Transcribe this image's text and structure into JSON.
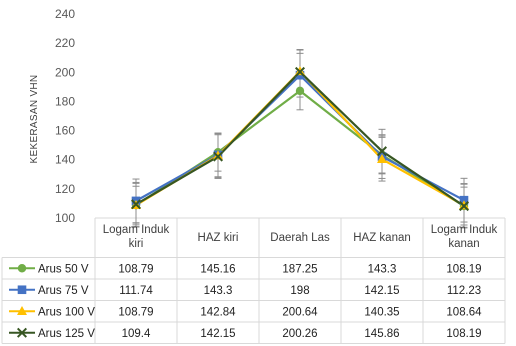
{
  "chart_data": {
    "type": "line",
    "ylabel": "KEKERASAN VHN",
    "ylim": [
      100,
      240
    ],
    "yticks": [
      100,
      120,
      140,
      160,
      180,
      200,
      220,
      240
    ],
    "categories": [
      [
        "Logam Induk",
        "kiri"
      ],
      [
        "HAZ kiri"
      ],
      [
        "Daerah Las"
      ],
      [
        "HAZ kanan"
      ],
      [
        "Logam Induk",
        "kanan"
      ]
    ],
    "series": [
      {
        "name": "Arus 50 V",
        "color": "#70AD47",
        "marker": "circle",
        "values": [
          108.79,
          145.16,
          187.25,
          143.3,
          108.19
        ],
        "labels": [
          "108.79",
          "145.16",
          "187.25",
          "143.3",
          "108.19"
        ],
        "error": [
          13,
          13,
          13,
          13,
          13
        ]
      },
      {
        "name": "Arus 75 V",
        "color": "#4472C4",
        "marker": "square",
        "values": [
          111.74,
          143.3,
          198,
          142.15,
          112.23
        ],
        "labels": [
          "111.74",
          "143.3",
          "198",
          "142.15",
          "112.23"
        ],
        "error": [
          15,
          15,
          15,
          15,
          15
        ]
      },
      {
        "name": "Arus 100 V",
        "color": "#FFC000",
        "marker": "triangle",
        "values": [
          108.79,
          142.84,
          200.64,
          140.35,
          108.64
        ],
        "labels": [
          "108.79",
          "142.84",
          "200.64",
          "140.35",
          "108.64"
        ],
        "error": [
          15,
          15,
          15,
          15,
          15
        ]
      },
      {
        "name": "Arus 125 V",
        "color": "#375623",
        "marker": "x",
        "values": [
          109.4,
          142.15,
          200.26,
          145.86,
          108.19
        ],
        "labels": [
          "109.4",
          "142.15",
          "200.26",
          "145.86",
          "108.19"
        ],
        "error": [
          15,
          15,
          15,
          15,
          15
        ]
      }
    ],
    "grid": false,
    "data_table": true
  }
}
